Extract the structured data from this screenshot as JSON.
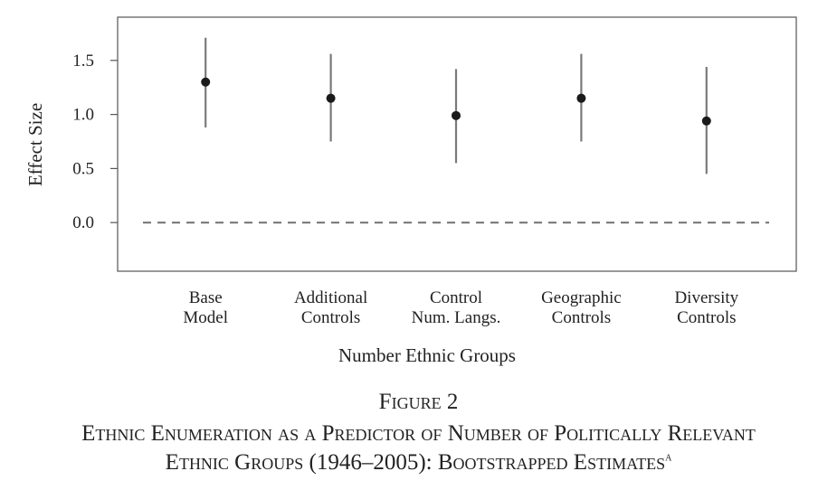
{
  "chart_data": {
    "type": "scatter",
    "subtype": "point-with-error-bars",
    "categories": [
      [
        "Base",
        "Model"
      ],
      [
        "Additional",
        "Controls"
      ],
      [
        "Control",
        "Num. Langs."
      ],
      [
        "Geographic",
        "Controls"
      ],
      [
        "Diversity",
        "Controls"
      ]
    ],
    "estimates": [
      1.3,
      1.15,
      0.99,
      1.15,
      0.94
    ],
    "lower": [
      0.88,
      0.75,
      0.55,
      0.75,
      0.45
    ],
    "upper": [
      1.71,
      1.56,
      1.42,
      1.56,
      1.44
    ],
    "reference_line": 0.0,
    "ylabel": "Effect Size",
    "xlabel": "Number Ethnic Groups",
    "yticks": [
      "0.0",
      "0.5",
      "1.0",
      "1.5"
    ],
    "ylim": [
      -0.45,
      1.9
    ],
    "grid": false,
    "colors": {
      "points": "#1a1a1a",
      "bars": "#7a7a7a",
      "reference": "#707070",
      "frame": "#555555"
    }
  },
  "caption": {
    "figure_label": "Figure 2",
    "title_line1": "Ethnic Enumeration as a Predictor of Number of Politically Relevant",
    "title_line2": "Ethnic Groups (1946–2005): Bootstrapped Estimates",
    "footnote_marker": "a"
  }
}
